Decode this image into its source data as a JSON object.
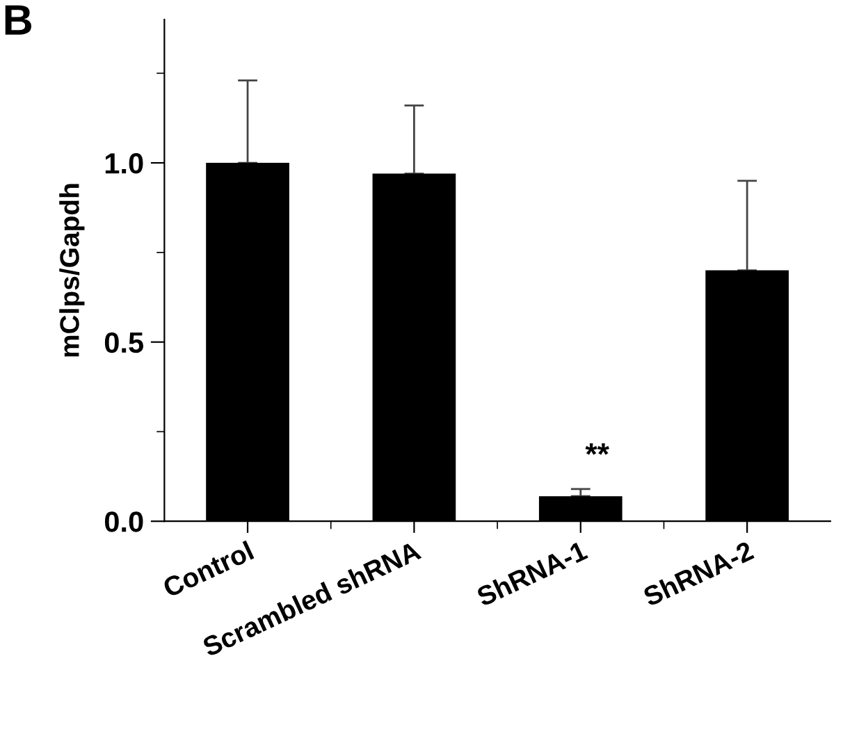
{
  "chart_data": {
    "type": "bar",
    "ylabel": "mClps/Gapdh",
    "categories": [
      "Control",
      "Scrambled shRNA",
      "ShRNA-1",
      "ShRNA-2"
    ],
    "values": [
      1.0,
      0.97,
      0.07,
      0.7
    ],
    "errors": [
      [
        1.0,
        1.23
      ],
      [
        0.97,
        1.16
      ],
      [
        0.07,
        0.09
      ],
      [
        0.7,
        0.95
      ]
    ],
    "color": "#000000",
    "ylim": [
      0,
      1.4
    ],
    "yticks": [
      {
        "value": 0,
        "label": "0.0"
      },
      {
        "value": 0.25,
        "label": null
      },
      0.5,
      {
        "value": 0.75,
        "label": null
      },
      {
        "value": 1,
        "label": "1.0"
      },
      {
        "value": 1.25,
        "label": null
      }
    ],
    "annotations": [
      "B",
      "**"
    ],
    "grid": false,
    "legend": false
  }
}
